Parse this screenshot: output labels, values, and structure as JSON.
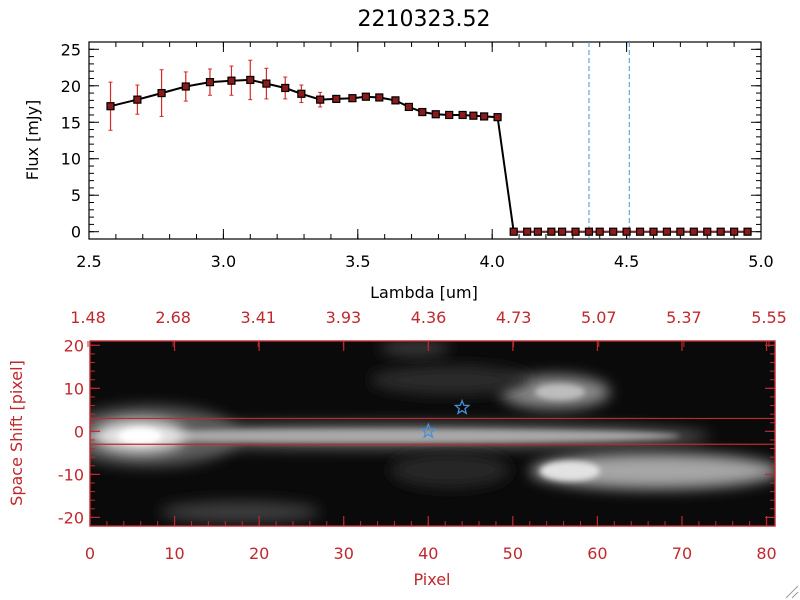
{
  "chart_data": [
    {
      "type": "line",
      "title": "2210323.52",
      "xlabel": "Lambda [um]",
      "ylabel": "Flux [mJy]",
      "xlim": [
        2.5,
        5.0
      ],
      "ylim": [
        -1,
        26
      ],
      "x_ticks": [
        "2.5",
        "3.0",
        "3.5",
        "4.0",
        "4.5",
        "5.0"
      ],
      "y_ticks": [
        "0",
        "5",
        "10",
        "15",
        "20",
        "25"
      ],
      "series": [
        {
          "x": [
            2.58,
            2.68,
            2.77,
            2.86,
            2.95,
            3.03,
            3.1,
            3.16,
            3.23,
            3.29,
            3.36,
            3.42,
            3.48,
            3.53,
            3.58,
            3.64,
            3.69,
            3.74,
            3.79,
            3.84,
            3.89,
            3.93,
            3.97,
            4.02,
            4.08,
            4.13,
            4.17,
            4.22,
            4.26,
            4.31,
            4.36,
            4.4,
            4.45,
            4.5,
            4.55,
            4.6,
            4.65,
            4.7,
            4.75,
            4.8,
            4.85,
            4.9,
            4.95
          ],
          "y": [
            17.2,
            18.1,
            19.0,
            19.9,
            20.5,
            20.7,
            20.8,
            20.3,
            19.7,
            18.9,
            18.1,
            18.2,
            18.3,
            18.5,
            18.4,
            18.0,
            17.1,
            16.4,
            16.1,
            16.0,
            16.0,
            15.9,
            15.8,
            15.7,
            0,
            0,
            0,
            0,
            0,
            0,
            0,
            0,
            0,
            0,
            0,
            0,
            0,
            0,
            0,
            0,
            0,
            0,
            0
          ],
          "yerr": [
            3.3,
            2.0,
            3.2,
            2.0,
            1.8,
            2.0,
            2.7,
            2.1,
            1.5,
            1.2,
            1.0,
            0,
            0,
            0,
            0,
            0,
            0,
            0,
            0,
            0,
            0,
            0,
            0,
            0,
            0,
            0,
            0,
            0,
            0,
            0,
            0,
            0,
            0,
            0,
            0,
            0,
            0,
            0,
            0,
            0,
            0,
            0,
            0
          ],
          "colors": {
            "marker_fill": "#8b1a1a",
            "marker_edge": "#000000",
            "error_bar": "#d42a2a",
            "line": "#000000"
          }
        }
      ],
      "vertical_lines": {
        "x": [
          4.36,
          4.51
        ],
        "color": "#4a90d9",
        "style": "dashed"
      },
      "grid": false
    },
    {
      "type": "heatmap",
      "xlabel": "Pixel",
      "ylabel": "Space Shift [pixel]",
      "xlim": [
        0,
        81
      ],
      "ylim": [
        -22,
        21
      ],
      "x_ticks": [
        "0",
        "10",
        "20",
        "30",
        "40",
        "50",
        "60",
        "70",
        "80"
      ],
      "y_ticks": [
        "-20",
        "-10",
        "0",
        "10",
        "20"
      ],
      "top_axis_ticks": [
        "1.48",
        "2.68",
        "3.41",
        "3.93",
        "4.36",
        "4.73",
        "5.07",
        "5.37",
        "5.55"
      ],
      "colormap": "grayscale",
      "aperture_lines": {
        "y": [
          3,
          -3
        ],
        "color": "#c0282e"
      },
      "markers": [
        {
          "x": 44,
          "y": 5.5,
          "symbol": "star",
          "color": "#4a90d9"
        },
        {
          "x": 40,
          "y": 0,
          "symbol": "star",
          "color": "#4a90d9"
        }
      ],
      "axis_color": "#c0282e"
    }
  ]
}
